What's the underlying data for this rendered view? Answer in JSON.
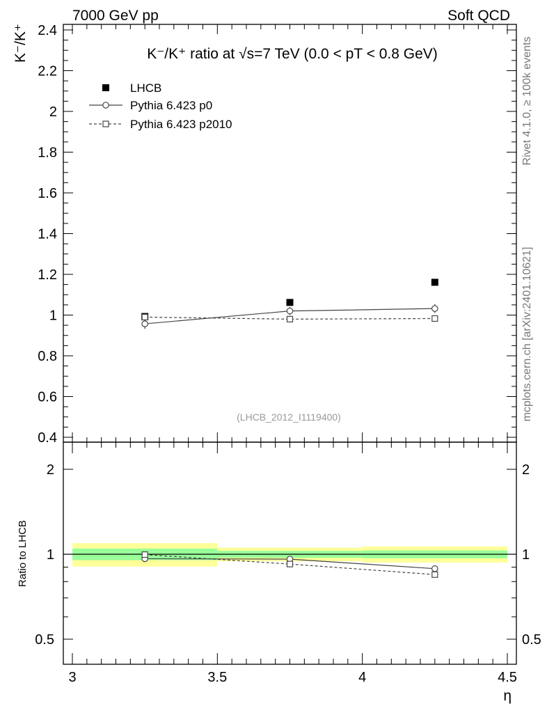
{
  "header": {
    "left": "7000 GeV pp",
    "right": "Soft QCD"
  },
  "side_labels": {
    "rivet": "Rivet 4.1.0, ≥ 100k events",
    "mcplots": "mcplots.cern.ch [arXiv:2401.10621]"
  },
  "chart_data": [
    {
      "type": "scatter",
      "panel": "main",
      "title": "K⁻/K⁺ ratio at √s=7 TeV (0.0 < pT < 0.8 GeV)",
      "ylabel": "K⁻/K⁺",
      "xlabel": "",
      "watermark": "(LHCB_2012_I1119400)",
      "xlim": [
        3.0,
        4.5
      ],
      "ylim": [
        0.4,
        2.45
      ],
      "y_ticks": [
        "0.4",
        "0.6",
        "0.8",
        "1",
        "1.2",
        "1.4",
        "1.6",
        "1.8",
        "2",
        "2.2",
        "2.4"
      ],
      "legend_position": "top-left",
      "series": [
        {
          "name": "LHCB",
          "marker": "filled-square",
          "line": "none",
          "color": "#000000",
          "x": [
            3.25,
            3.75,
            4.25
          ],
          "y": [
            0.993,
            1.062,
            1.161
          ],
          "yerr": [
            0.012,
            0.01,
            0.01
          ]
        },
        {
          "name": "Pythia 6.423 p0",
          "marker": "open-circle",
          "line": "solid",
          "color": "#444444",
          "x": [
            3.25,
            3.75,
            4.25
          ],
          "y": [
            0.957,
            1.02,
            1.032
          ],
          "yerr": [
            0.025,
            0.02,
            0.022
          ]
        },
        {
          "name": "Pythia 6.423 p2010",
          "marker": "open-square",
          "line": "dashed",
          "color": "#444444",
          "x": [
            3.25,
            3.75,
            4.25
          ],
          "y": [
            0.99,
            0.98,
            0.983
          ],
          "yerr": [
            0.015,
            0.012,
            0.015
          ]
        }
      ]
    },
    {
      "type": "scatter",
      "panel": "ratio",
      "ylabel": "Ratio to LHCB",
      "xlabel": "η",
      "xlim": [
        3.0,
        4.5
      ],
      "ylim": [
        0.4,
        2.4
      ],
      "y_scale": "log",
      "x_ticks": [
        "3",
        "3.5",
        "4",
        "4.5"
      ],
      "y_ticks": [
        "0.5",
        "1",
        "2"
      ],
      "bands": [
        {
          "x": [
            3.0,
            3.5
          ],
          "inner": [
            0.953,
            1.047
          ],
          "outer": [
            0.905,
            1.095
          ]
        },
        {
          "x": [
            3.5,
            4.0
          ],
          "inner": [
            0.972,
            1.028
          ],
          "outer": [
            0.945,
            1.055
          ]
        },
        {
          "x": [
            4.0,
            4.5
          ],
          "inner": [
            0.968,
            1.032
          ],
          "outer": [
            0.935,
            1.065
          ]
        }
      ],
      "band_colors": {
        "inner": "#99ff99",
        "outer": "#ffff99"
      },
      "series": [
        {
          "name": "Pythia 6.423 p0",
          "marker": "open-circle",
          "line": "solid",
          "x": [
            3.25,
            3.75,
            4.25
          ],
          "y": [
            0.964,
            0.961,
            0.889
          ]
        },
        {
          "name": "Pythia 6.423 p2010",
          "marker": "open-square",
          "line": "dashed",
          "x": [
            3.25,
            3.75,
            4.25
          ],
          "y": [
            0.997,
            0.923,
            0.847
          ]
        }
      ]
    }
  ]
}
